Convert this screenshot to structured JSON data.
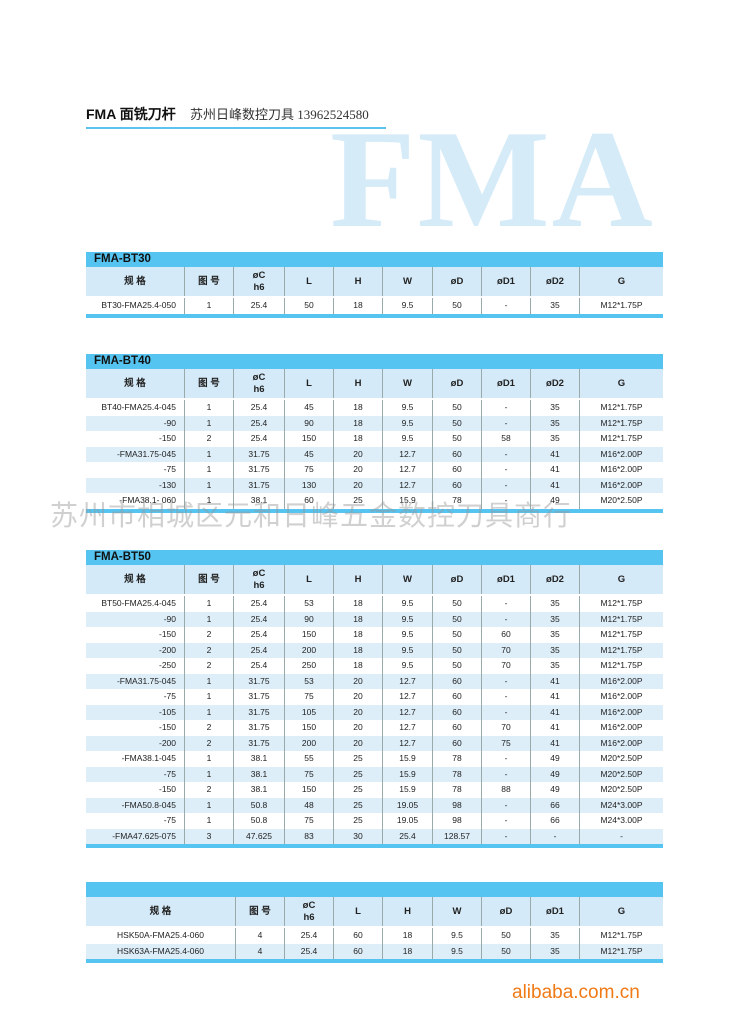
{
  "header": {
    "title": "FMA 面铣刀杆",
    "subtitle": "苏州日峰数控刀具  13962524580",
    "background_text": "FMA"
  },
  "watermark": "苏州市相城区元和日峰五金数控刀具商行",
  "footer_logo": "alibaba.com.cn",
  "colors": {
    "accent": "#55c4f0",
    "row_alt": "#ddeef9",
    "logo": "#f07a16"
  },
  "tables": [
    {
      "name": "FMA-BT30",
      "columns": [
        "规 格",
        "图 号",
        "øC\nh6",
        "L",
        "H",
        "W",
        "øD",
        "øD1",
        "øD2",
        "G"
      ],
      "rows": [
        [
          "BT30-FMA25.4-050",
          "1",
          "25.4",
          "50",
          "18",
          "9.5",
          "50",
          "-",
          "35",
          "M12*1.75P"
        ]
      ]
    },
    {
      "name": "FMA-BT40",
      "columns": [
        "规 格",
        "图 号",
        "øC\nh6",
        "L",
        "H",
        "W",
        "øD",
        "øD1",
        "øD2",
        "G"
      ],
      "rows": [
        [
          "BT40-FMA25.4-045",
          "1",
          "25.4",
          "45",
          "18",
          "9.5",
          "50",
          "-",
          "35",
          "M12*1.75P"
        ],
        [
          "-90",
          "1",
          "25.4",
          "90",
          "18",
          "9.5",
          "50",
          "-",
          "35",
          "M12*1.75P"
        ],
        [
          "-150",
          "2",
          "25.4",
          "150",
          "18",
          "9.5",
          "50",
          "58",
          "35",
          "M12*1.75P"
        ],
        [
          "-FMA31.75-045",
          "1",
          "31.75",
          "45",
          "20",
          "12.7",
          "60",
          "-",
          "41",
          "M16*2.00P"
        ],
        [
          "-75",
          "1",
          "31.75",
          "75",
          "20",
          "12.7",
          "60",
          "-",
          "41",
          "M16*2.00P"
        ],
        [
          "-130",
          "1",
          "31.75",
          "130",
          "20",
          "12.7",
          "60",
          "-",
          "41",
          "M16*2.00P"
        ],
        [
          "-FMA38.1- 060",
          "1",
          "38.1",
          "60",
          "25",
          "15.9",
          "78",
          "-",
          "49",
          "M20*2.50P"
        ]
      ]
    },
    {
      "name": "FMA-BT50",
      "columns": [
        "规 格",
        "图 号",
        "øC\nh6",
        "L",
        "H",
        "W",
        "øD",
        "øD1",
        "øD2",
        "G"
      ],
      "rows": [
        [
          "BT50-FMA25.4-045",
          "1",
          "25.4",
          "53",
          "18",
          "9.5",
          "50",
          "-",
          "35",
          "M12*1.75P"
        ],
        [
          "-90",
          "1",
          "25.4",
          "90",
          "18",
          "9.5",
          "50",
          "-",
          "35",
          "M12*1.75P"
        ],
        [
          "-150",
          "2",
          "25.4",
          "150",
          "18",
          "9.5",
          "50",
          "60",
          "35",
          "M12*1.75P"
        ],
        [
          "-200",
          "2",
          "25.4",
          "200",
          "18",
          "9.5",
          "50",
          "70",
          "35",
          "M12*1.75P"
        ],
        [
          "-250",
          "2",
          "25.4",
          "250",
          "18",
          "9.5",
          "50",
          "70",
          "35",
          "M12*1.75P"
        ],
        [
          "-FMA31.75-045",
          "1",
          "31.75",
          "53",
          "20",
          "12.7",
          "60",
          "-",
          "41",
          "M16*2.00P"
        ],
        [
          "-75",
          "1",
          "31.75",
          "75",
          "20",
          "12.7",
          "60",
          "-",
          "41",
          "M16*2.00P"
        ],
        [
          "-105",
          "1",
          "31.75",
          "105",
          "20",
          "12.7",
          "60",
          "-",
          "41",
          "M16*2.00P"
        ],
        [
          "-150",
          "2",
          "31.75",
          "150",
          "20",
          "12.7",
          "60",
          "70",
          "41",
          "M16*2.00P"
        ],
        [
          "-200",
          "2",
          "31.75",
          "200",
          "20",
          "12.7",
          "60",
          "75",
          "41",
          "M16*2.00P"
        ],
        [
          "-FMA38.1-045",
          "1",
          "38.1",
          "55",
          "25",
          "15.9",
          "78",
          "-",
          "49",
          "M20*2.50P"
        ],
        [
          "-75",
          "1",
          "38.1",
          "75",
          "25",
          "15.9",
          "78",
          "-",
          "49",
          "M20*2.50P"
        ],
        [
          "-150",
          "2",
          "38.1",
          "150",
          "25",
          "15.9",
          "78",
          "88",
          "49",
          "M20*2.50P"
        ],
        [
          "-FMA50.8-045",
          "1",
          "50.8",
          "48",
          "25",
          "19.05",
          "98",
          "-",
          "66",
          "M24*3.00P"
        ],
        [
          "-75",
          "1",
          "50.8",
          "75",
          "25",
          "19.05",
          "98",
          "-",
          "66",
          "M24*3.00P"
        ],
        [
          "-FMA47.625-075",
          "3",
          "47.625",
          "83",
          "30",
          "25.4",
          "128.57",
          "-",
          "-",
          "-"
        ]
      ]
    },
    {
      "name": "",
      "columns": [
        "规 格",
        "图 号",
        "øC\nh6",
        "L",
        "H",
        "W",
        "øD",
        "øD1",
        "G"
      ],
      "rows": [
        [
          "HSK50A-FMA25.4-060",
          "4",
          "25.4",
          "60",
          "18",
          "9.5",
          "50",
          "35",
          "M12*1.75P"
        ],
        [
          "HSK63A-FMA25.4-060",
          "4",
          "25.4",
          "60",
          "18",
          "9.5",
          "50",
          "35",
          "M12*1.75P"
        ]
      ]
    }
  ]
}
